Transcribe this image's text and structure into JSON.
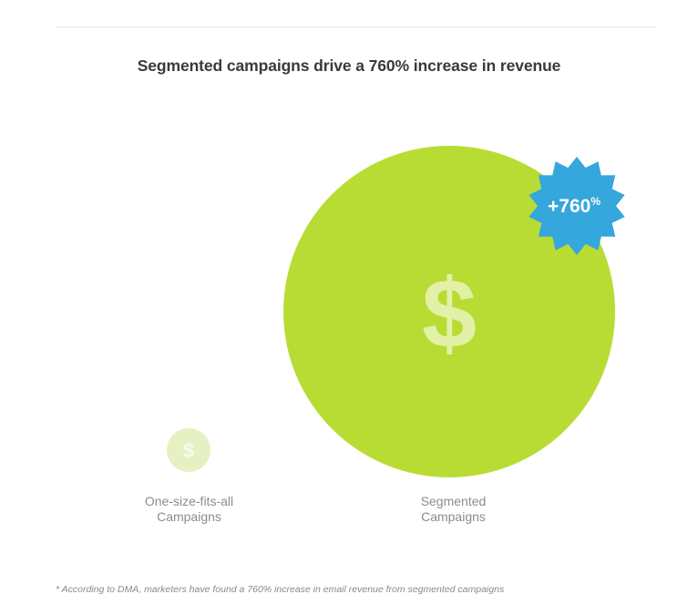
{
  "colors": {
    "small_circle": "#e5f1c3",
    "small_dollar": "#f7fbe9",
    "big_circle": "#b9dc34",
    "big_dollar": "#e3f0a8",
    "badge": "#35a7dc",
    "badge_text": "#ffffff",
    "title_text": "#3a3a3a",
    "label_text": "#8c8c8c"
  },
  "icons": {
    "currency": "dollar-sign",
    "badge": "starburst"
  },
  "chart_data": {
    "type": "bubble",
    "title": "Segmented campaigns drive a 760% increase in revenue",
    "categories": [
      "One-size-fits-all\nCampaigns",
      "Segmented\nCampaigns"
    ],
    "values": [
      1,
      8.6
    ],
    "value_note": "relative revenue; segmented = +760%",
    "badge_text": "+760",
    "badge_suffix": "%",
    "currency_symbol": "$",
    "footnote": "* According to DMA, marketers have found a 760% increase in email revenue from segmented campaigns"
  }
}
